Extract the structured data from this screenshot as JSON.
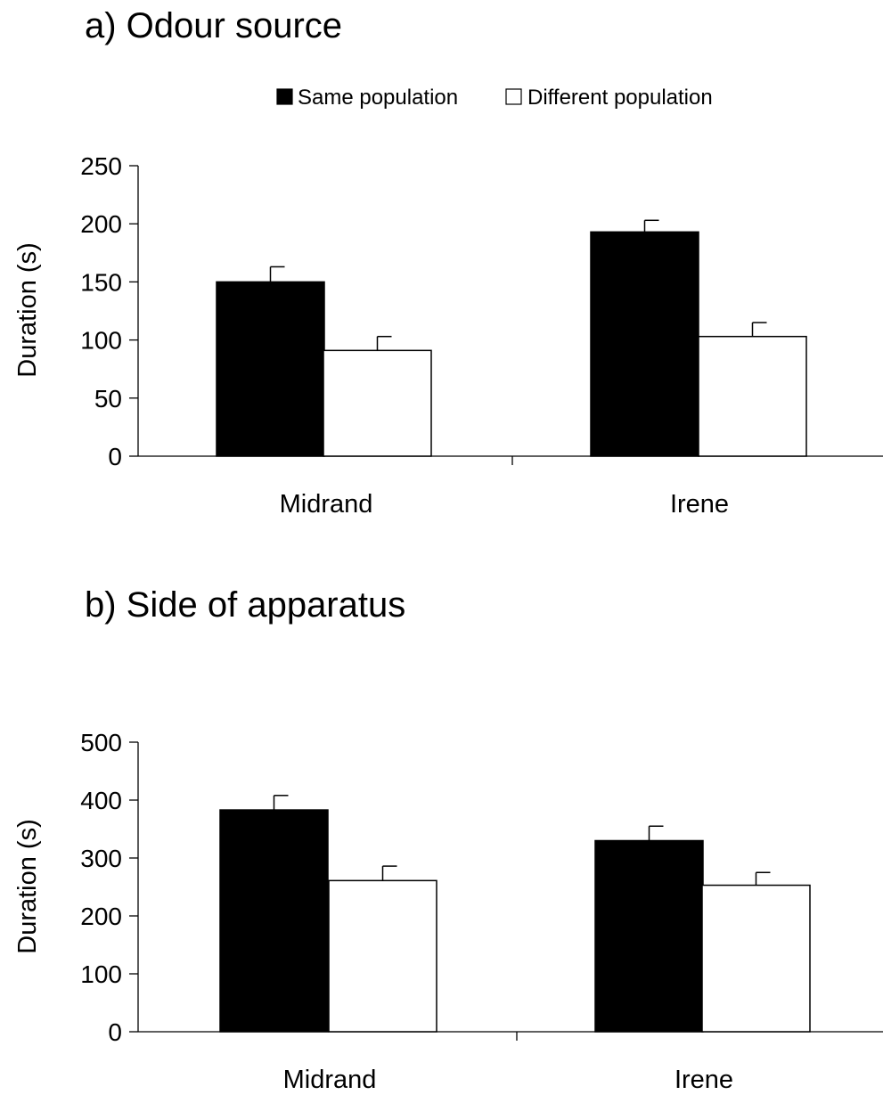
{
  "legend": {
    "items": [
      {
        "label": "Same population",
        "color": "#000000"
      },
      {
        "label": "Different population",
        "color": "#ffffff"
      }
    ]
  },
  "chart_data": [
    {
      "type": "bar",
      "title": "a) Odour source",
      "ylabel": "Duration (s)",
      "xlabel": "",
      "categories": [
        "Midrand",
        "Irene"
      ],
      "ylim": [
        0,
        250
      ],
      "yticks": [
        0,
        50,
        100,
        150,
        200,
        250
      ],
      "series": [
        {
          "name": "Same population",
          "color": "#000000",
          "values": [
            150,
            193
          ],
          "errors": [
            13,
            10
          ]
        },
        {
          "name": "Different population",
          "color": "#ffffff",
          "values": [
            91,
            103
          ],
          "errors": [
            12,
            12
          ]
        }
      ]
    },
    {
      "type": "bar",
      "title": "b) Side of apparatus",
      "ylabel": "Duration (s)",
      "xlabel": "",
      "categories": [
        "Midrand",
        "Irene"
      ],
      "ylim": [
        0,
        500
      ],
      "yticks": [
        0,
        100,
        200,
        300,
        400,
        500
      ],
      "series": [
        {
          "name": "Same population",
          "color": "#000000",
          "values": [
            383,
            330
          ],
          "errors": [
            25,
            25
          ]
        },
        {
          "name": "Different population",
          "color": "#ffffff",
          "values": [
            261,
            253
          ],
          "errors": [
            25,
            22
          ]
        }
      ]
    }
  ]
}
